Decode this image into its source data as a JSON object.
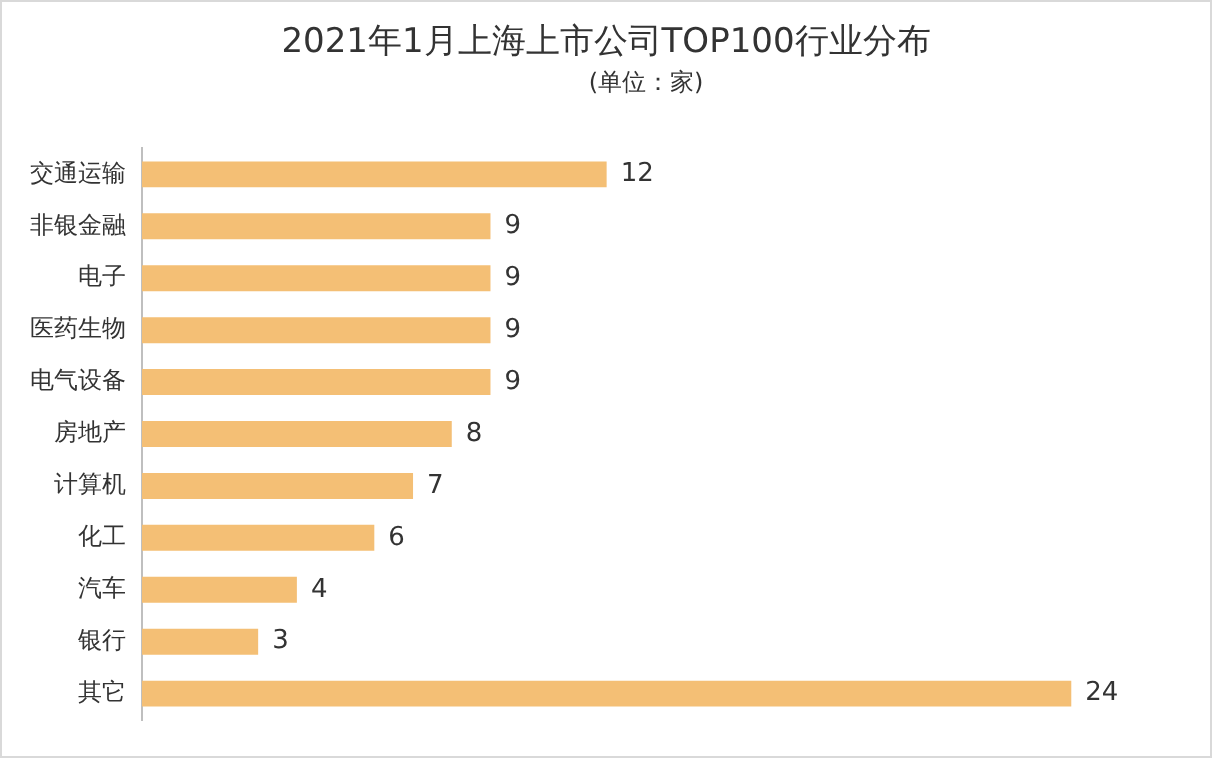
{
  "chart_data": {
    "type": "bar",
    "orientation": "horizontal",
    "title": "2021年1月上海上市公司TOP100行业分布",
    "subtitle": "(单位：家)",
    "categories": [
      "交通运输",
      "非银金融",
      "电子",
      "医药生物",
      "电气设备",
      "房地产",
      "计算机",
      "化工",
      "汽车",
      "银行",
      "其它"
    ],
    "values": [
      12,
      9,
      9,
      9,
      9,
      8,
      7,
      6,
      4,
      3,
      24
    ],
    "color": "#f4bf75",
    "data_labels": true
  }
}
